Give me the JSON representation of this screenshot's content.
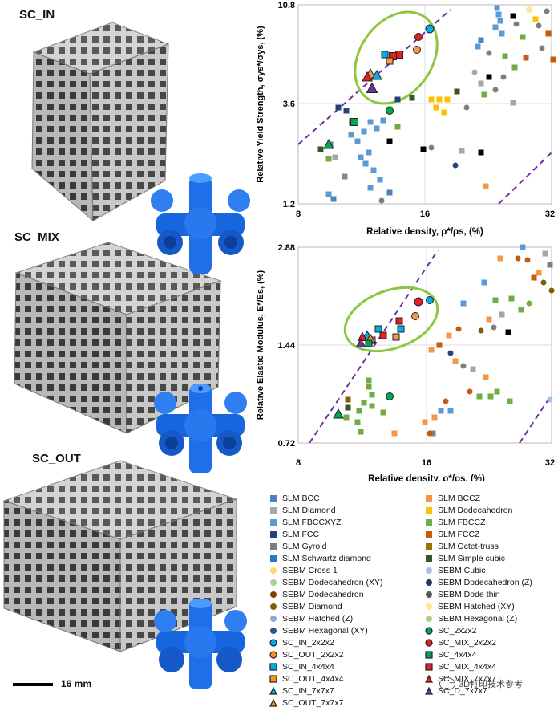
{
  "labels": {
    "sc_in": "SC_IN",
    "sc_mix": "SC_MIX",
    "sc_out": "SC_OUT",
    "scale_bar": "16 mm"
  },
  "watermark": "3D打印技术参考",
  "chart_data": [
    {
      "type": "scatter",
      "xlabel": "Relative density, ρ*/ρs, (%)",
      "ylabel": "Relative Yield Strength, σys*/σys, (%)",
      "x_ticks": [
        "8",
        "16",
        "32"
      ],
      "y_ticks": [
        "1.2",
        "3.6",
        "10.8"
      ],
      "xlim": [
        8,
        32
      ],
      "ylim": [
        1.2,
        10.8
      ],
      "scale": "log",
      "highlight": "green ellipse around SC_IN / SC_MIX / SC_OUT points"
    },
    {
      "type": "scatter",
      "xlabel": "Relative density, ρ*/ρs, (%)",
      "ylabel": "Relative Elastic Modulus, E*/Es, (%)",
      "x_ticks": [
        "8",
        "16",
        "32"
      ],
      "y_ticks": [
        "0.72",
        "1.44",
        "2.88"
      ],
      "xlim": [
        8,
        32
      ],
      "ylim": [
        0.72,
        2.88
      ],
      "scale": "log",
      "highlight": "green ellipse around SC_IN / SC_MIX / SC_OUT points"
    }
  ],
  "legend": [
    {
      "label": "SLM BCC",
      "color": "#4f81bd",
      "shape": "square"
    },
    {
      "label": "SLM BCCZ",
      "color": "#f79646",
      "shape": "square"
    },
    {
      "label": "SLM Diamond",
      "color": "#a6a6a6",
      "shape": "square"
    },
    {
      "label": "SLM Dodecahedron",
      "color": "#ffc000",
      "shape": "square"
    },
    {
      "label": "SLM FBCCXYZ",
      "color": "#5b9bd5",
      "shape": "square"
    },
    {
      "label": "SLM FBCCZ",
      "color": "#70ad47",
      "shape": "square"
    },
    {
      "label": "SLM FCC",
      "color": "#264478",
      "shape": "square"
    },
    {
      "label": "SLM FCCZ",
      "color": "#c55a11",
      "shape": "square"
    },
    {
      "label": "SLM Gyroid",
      "color": "#7f7f7f",
      "shape": "square"
    },
    {
      "label": "SLM Octet-truss",
      "color": "#997300",
      "shape": "square"
    },
    {
      "label": "SLM Schwartz diamond",
      "color": "#2e75b6",
      "shape": "square"
    },
    {
      "label": "SLM Simple cubic",
      "color": "#375623",
      "shape": "square"
    },
    {
      "label": "SEBM Cross 1",
      "color": "#ffd966",
      "shape": "circle"
    },
    {
      "label": "SEBM Cubic",
      "color": "#9dc3e6",
      "shape": "circle"
    },
    {
      "label": "SEBM Dodecahedron (XY)",
      "color": "#a9d18e",
      "shape": "circle"
    },
    {
      "label": "SEBM Dodecahedron (Z)",
      "color": "#203864",
      "shape": "circle"
    },
    {
      "label": "SEBM Dodecahedron",
      "color": "#843c0c",
      "shape": "circle"
    },
    {
      "label": "SEBM Dode thin",
      "color": "#595959",
      "shape": "circle"
    },
    {
      "label": "SEBM Diamond",
      "color": "#7f6000",
      "shape": "circle"
    },
    {
      "label": "SEBM Hatched (XY)",
      "color": "#ffe699",
      "shape": "circle"
    },
    {
      "label": "SEBM Hatched (Z)",
      "color": "#8faadc",
      "shape": "circle"
    },
    {
      "label": "SEBM Hexagonal (Z)",
      "color": "#a9d18e",
      "shape": "circle"
    },
    {
      "label": "SEBM Hexagonal (XY)",
      "color": "#2f5597",
      "shape": "circle"
    },
    {
      "label": "SC_2x2x2",
      "color": "#00a651",
      "shape": "circle-outline"
    },
    {
      "label": "SC_IN_2x2x2",
      "color": "#00aeef",
      "shape": "circle-outline"
    },
    {
      "label": "SC_MIX_2x2x2",
      "color": "#e31e24",
      "shape": "circle-outline"
    },
    {
      "label": "SC_OUT_2x2x2",
      "color": "#f7941d",
      "shape": "circle-outline"
    },
    {
      "label": "SC_4x4x4",
      "color": "#00a651",
      "shape": "square-outline"
    },
    {
      "label": "SC_IN_4x4x4",
      "color": "#00aeef",
      "shape": "square-outline"
    },
    {
      "label": "SC_MIX_4x4x4",
      "color": "#e31e24",
      "shape": "square-outline"
    },
    {
      "label": "SC_OUT_4x4x4",
      "color": "#f7941d",
      "shape": "square-outline"
    },
    {
      "label": "SC_MIX_7x7x7",
      "color": "#e31e24",
      "shape": "triangle-outline"
    },
    {
      "label": "SC_IN_7x7x7",
      "color": "#00aeef",
      "shape": "triangle-outline"
    },
    {
      "label": "SC_D_7x7x7",
      "color": "#7030a0",
      "shape": "triangle-outline"
    },
    {
      "label": "SC_OUT_7x7x7",
      "color": "#f7941d",
      "shape": "triangle-outline"
    }
  ]
}
